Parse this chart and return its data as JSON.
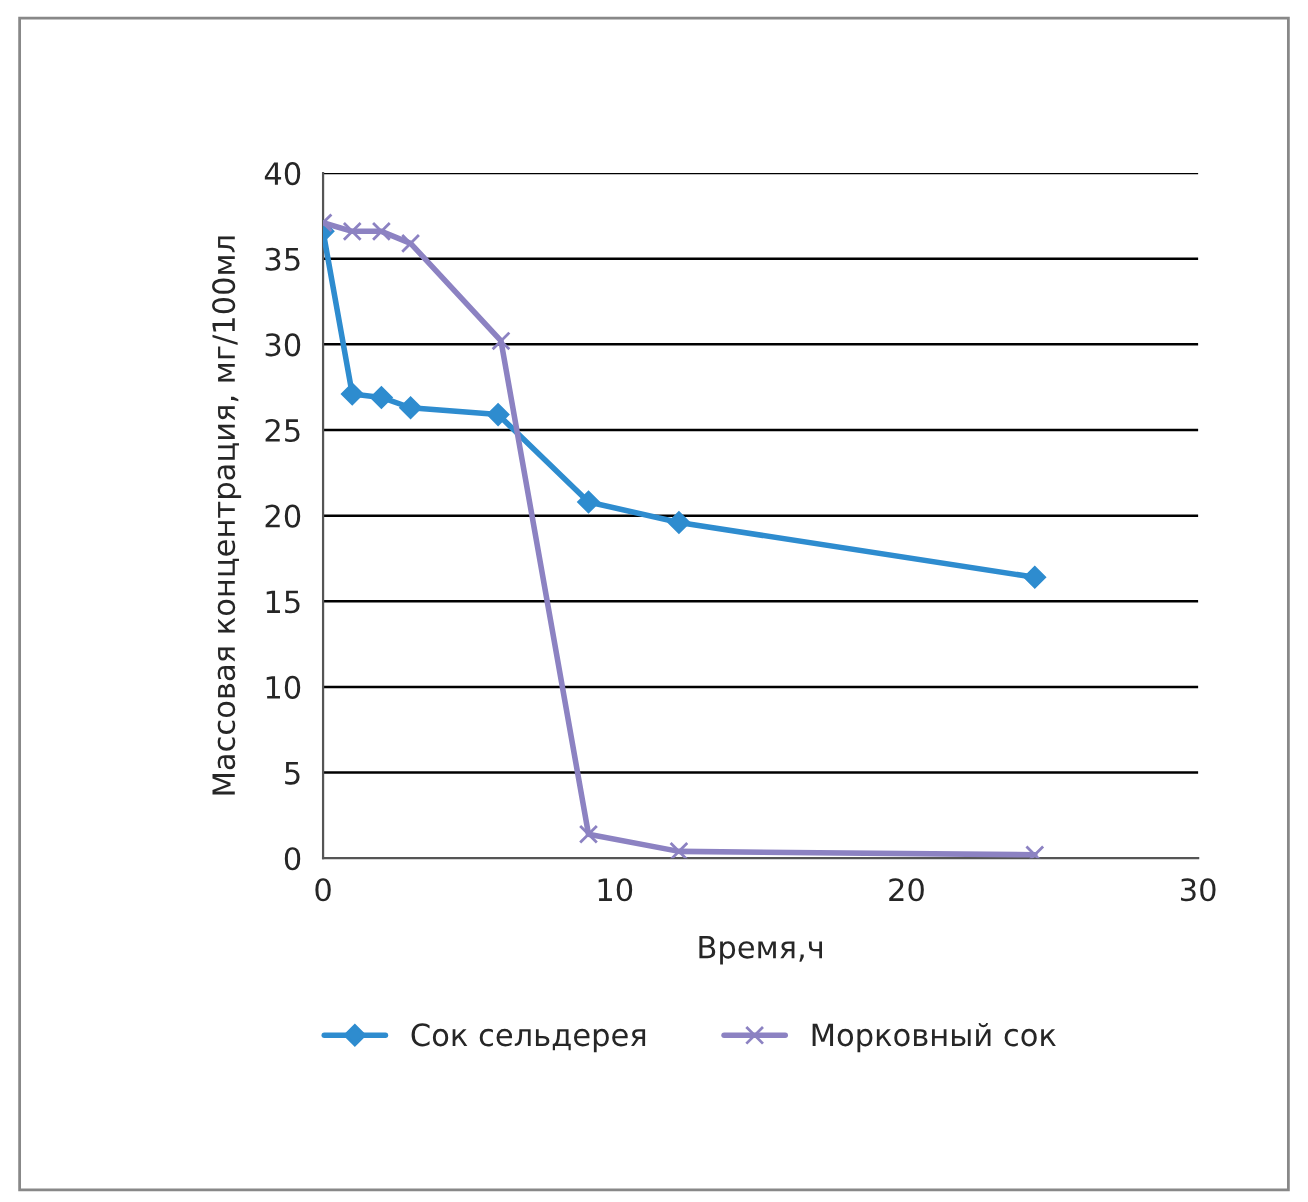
{
  "chart_data": {
    "type": "line",
    "xlabel": "Время,ч",
    "ylabel": "Массовая концентрация, мг/100мл",
    "xlim": [
      0,
      30
    ],
    "xticks": [
      0,
      10,
      20,
      30
    ],
    "ylim": [
      0,
      40
    ],
    "yticks": [
      0,
      5,
      10,
      15,
      20,
      25,
      30,
      35,
      40
    ],
    "grid": "y",
    "legend": "bottom",
    "series": [
      {
        "name": "Сок сельдерея",
        "color": "#2e8ccf",
        "marker": "diamond",
        "x": [
          0,
          1,
          2,
          3,
          6,
          9.1,
          12.2,
          24.4
        ],
        "values": [
          36.6,
          27.1,
          26.9,
          26.3,
          25.9,
          20.8,
          19.6,
          16.4
        ]
      },
      {
        "name": "Морковный сок",
        "color": "#8c82c2",
        "marker": "cross",
        "x": [
          0,
          1,
          2,
          3,
          6.1,
          9.1,
          12.2,
          24.4
        ],
        "values": [
          37.1,
          36.6,
          36.6,
          35.9,
          30.2,
          1.4,
          0.4,
          0.2
        ]
      }
    ]
  }
}
